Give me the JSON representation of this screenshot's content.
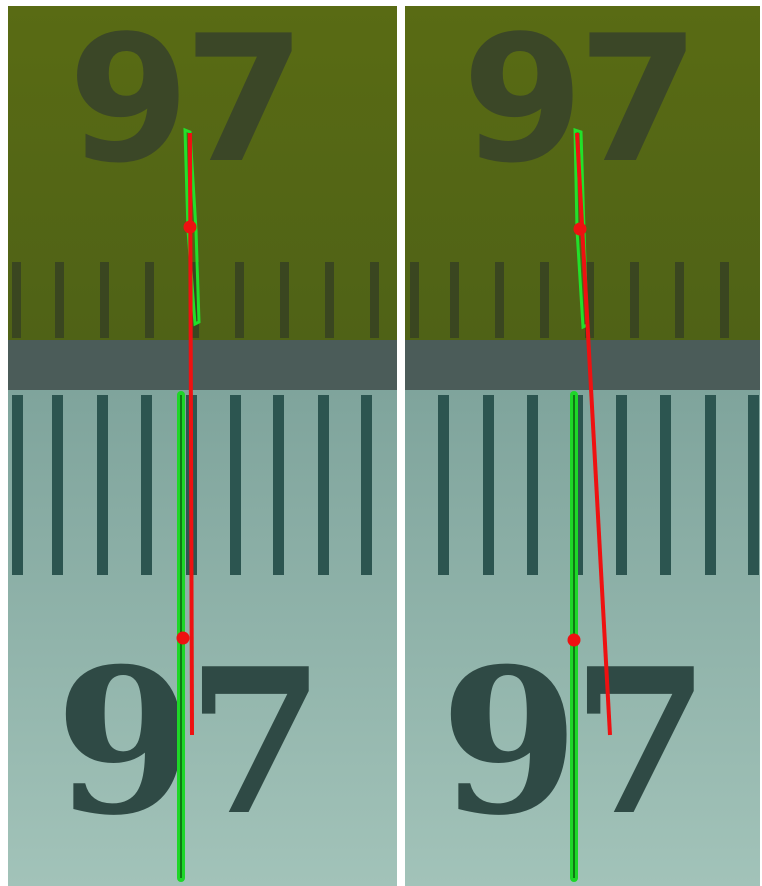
{
  "panels": [
    {
      "top_label": "97",
      "bottom_label": "97"
    },
    {
      "top_label": "97",
      "bottom_label": "97"
    }
  ]
}
